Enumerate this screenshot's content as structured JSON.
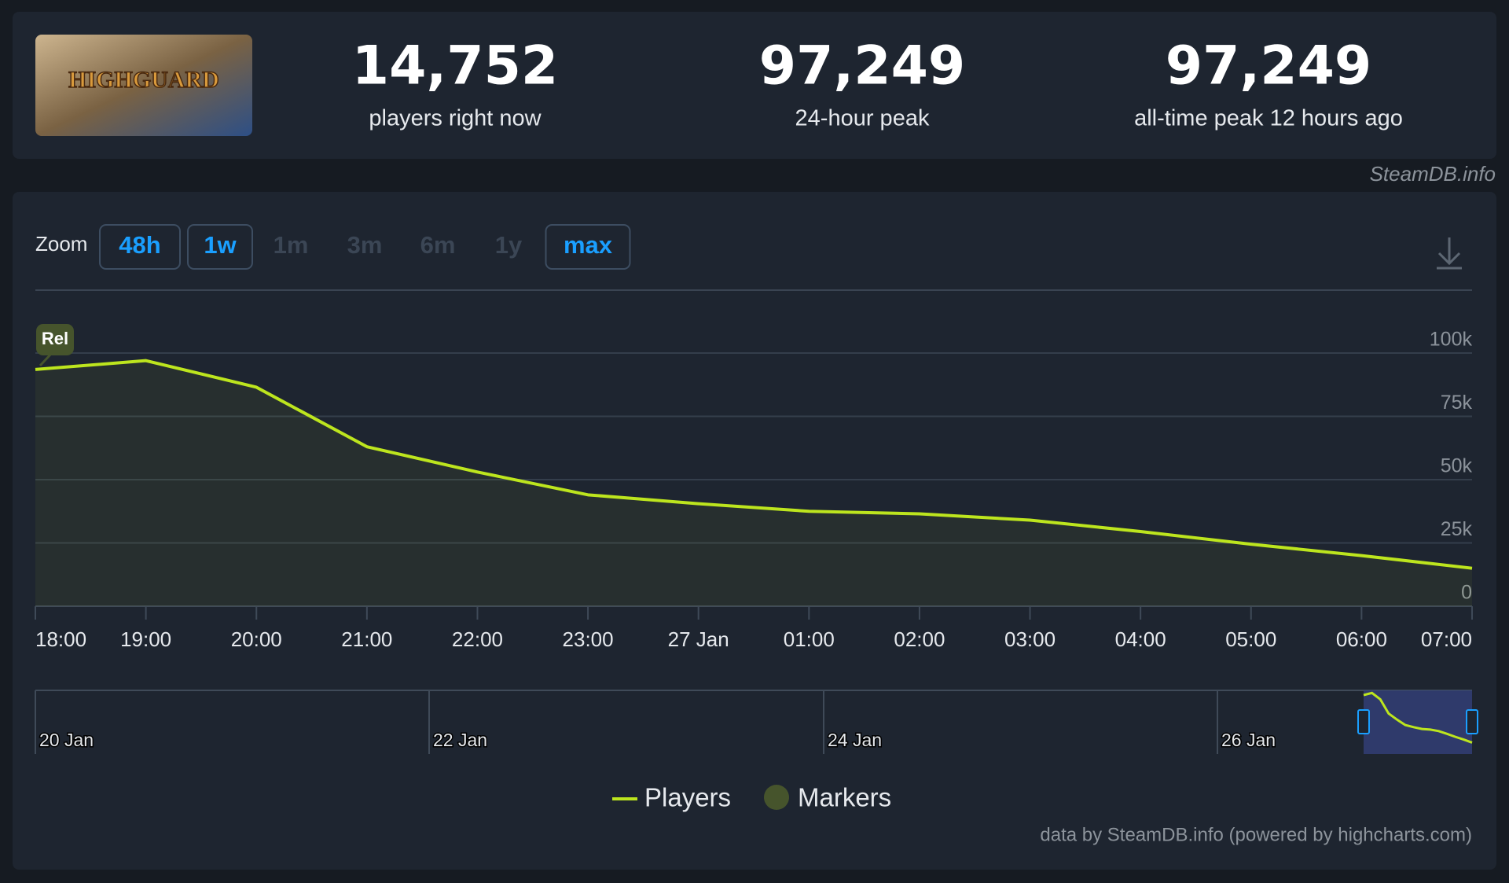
{
  "game": {
    "logo_text": "HIGHGUARD"
  },
  "stats": [
    {
      "value": "14,752",
      "label": "players right now"
    },
    {
      "value": "97,249",
      "label": "24-hour peak"
    },
    {
      "value": "97,249",
      "label": "all-time peak 12 hours ago"
    }
  ],
  "source": "SteamDB.info",
  "zoom": {
    "label": "Zoom",
    "options": [
      "48h",
      "1w",
      "1m",
      "3m",
      "6m",
      "1y",
      "max"
    ],
    "enabled": [
      true,
      true,
      false,
      false,
      false,
      false,
      true
    ]
  },
  "chart_data": {
    "type": "line",
    "categories": [
      "18:00",
      "19:00",
      "20:00",
      "21:00",
      "22:00",
      "23:00",
      "27 Jan",
      "01:00",
      "02:00",
      "03:00",
      "04:00",
      "05:00",
      "06:00",
      "07:00"
    ],
    "series": [
      {
        "name": "Players",
        "color": "#bde51e",
        "values": [
          93500,
          97000,
          86500,
          63000,
          53000,
          44000,
          40500,
          37500,
          36500,
          34000,
          29500,
          24500,
          20000,
          15000
        ]
      }
    ],
    "markers": {
      "name": "Markers",
      "color": "#46542c",
      "label": "Rel"
    },
    "ylim": [
      0,
      100000
    ],
    "yticks": [
      0,
      {
        "value": 25000,
        "label": "25k"
      },
      {
        "value": 50000,
        "label": "50k"
      },
      {
        "value": 75000,
        "label": "75k"
      },
      {
        "value": 100000,
        "label": "100k"
      }
    ],
    "grid": true,
    "navigator": {
      "labels": [
        "20 Jan",
        "22 Jan",
        "24 Jan",
        "26 Jan"
      ]
    },
    "credit": "data by SteamDB.info (powered by highcharts.com)"
  }
}
